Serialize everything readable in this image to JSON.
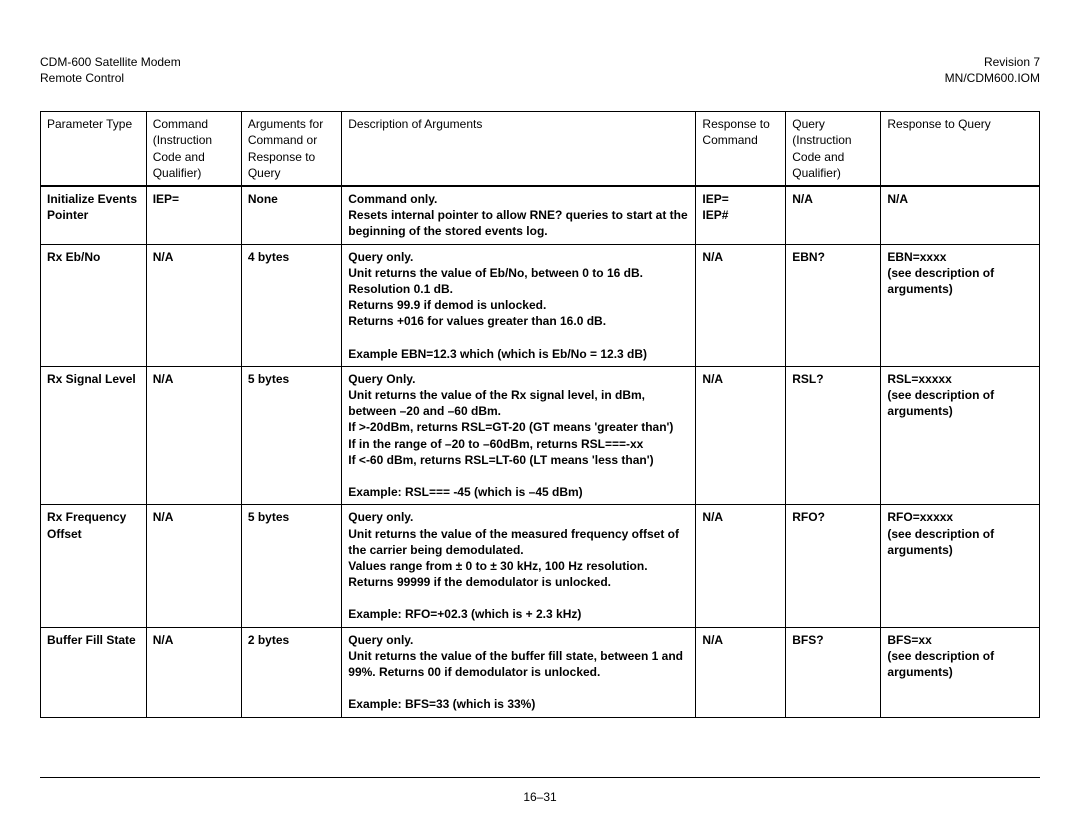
{
  "header": {
    "left_line1": "CDM-600 Satellite Modem",
    "left_line2": "Remote Control",
    "right_line1": "Revision 7",
    "right_line2": "MN/CDM600.IOM"
  },
  "columns": {
    "c1": "Parameter Type",
    "c2": "Command (Instruction Code and Qualifier)",
    "c3": "Arguments for Command or Response to Query",
    "c4": "Description of Arguments",
    "c5": "Response to Command",
    "c6": "Query (Instruction Code and Qualifier)",
    "c7": "Response to Query"
  },
  "rows": [
    {
      "param": "Initialize Events Pointer",
      "cmd": "IEP=",
      "args": "None",
      "desc": "Command only.\nResets internal pointer to allow RNE? queries to start at the beginning of the stored events log.",
      "resp": "IEP=\nIEP#",
      "query": "N/A",
      "rquery": "N/A"
    },
    {
      "param": "Rx Eb/No",
      "cmd": "N/A",
      "args": "4 bytes",
      "desc": "Query only.\nUnit returns the value of Eb/No, between 0 to 16 dB.\nResolution 0.1 dB.\nReturns 99.9 if demod is unlocked.\nReturns +016 for values greater than 16.0 dB.\n\nExample EBN=12.3 which (which is Eb/No = 12.3 dB)",
      "resp": "N/A",
      "query": "EBN?",
      "rquery": "EBN=xxxx\n(see description of arguments)"
    },
    {
      "param": "Rx Signal Level",
      "cmd": "N/A",
      "args": "5 bytes",
      "desc": "Query Only.\nUnit returns the value of the Rx signal level, in dBm, between –20 and –60 dBm.\nIf >-20dBm, returns RSL=GT-20       (GT means 'greater than')\nIf in the range of –20 to –60dBm, returns RSL===-xx\nIf <-60 dBm,  returns RSL=LT-60       (LT means 'less than')\n\nExample: RSL=== -45 (which is –45 dBm)",
      "resp": "N/A",
      "query": "RSL?",
      "rquery": "RSL=xxxxx\n(see description of arguments)"
    },
    {
      "param": "Rx Frequency Offset",
      "cmd": "N/A",
      "args": "5 bytes",
      "desc": "Query only.\nUnit returns the value of the measured frequency offset of the carrier being demodulated.\nValues range from ± 0 to ± 30 kHz, 100 Hz resolution.\nReturns 99999 if the demodulator is unlocked.\n\nExample: RFO=+02.3 (which is + 2.3 kHz)",
      "resp": "N/A",
      "query": "RFO?",
      "rquery": "RFO=xxxxx\n(see description of arguments)"
    },
    {
      "param": "Buffer Fill State",
      "cmd": "N/A",
      "args": "2 bytes",
      "desc": "Query only.\nUnit returns the value of the buffer fill state, between 1 and 99%. Returns 00 if demodulator is unlocked.\n\nExample: BFS=33 (which is 33%)",
      "resp": "N/A",
      "query": "BFS?",
      "rquery": "BFS=xx\n(see description of arguments)"
    }
  ],
  "footer": {
    "page_num": "16–31"
  }
}
